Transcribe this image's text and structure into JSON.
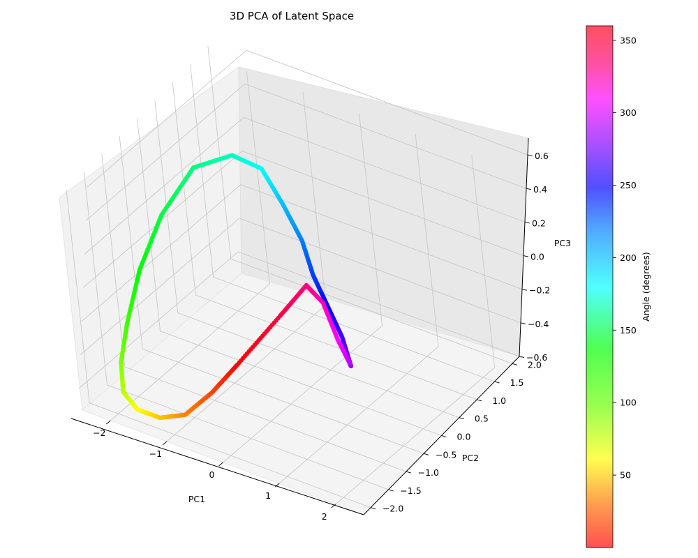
{
  "chart_data": {
    "type": "scatter",
    "projection": "3d",
    "title": "3D PCA of Latent Space",
    "xlabel": "PC1",
    "ylabel": "PC2",
    "zlabel": "PC3",
    "xlim": [
      -2.5,
      2.5
    ],
    "ylim": [
      -2.2,
      2.2
    ],
    "zlim": [
      -0.6,
      0.7
    ],
    "x_ticks": [
      "−2",
      "−1",
      "0",
      "1",
      "2"
    ],
    "y_ticks": [
      "−2.0",
      "−1.5",
      "−1.0",
      "−0.5",
      "0.0",
      "0.5",
      "1.0",
      "1.5",
      "2.0"
    ],
    "z_ticks": [
      "−0.6",
      "−0.4",
      "−0.2",
      "0.0",
      "0.2",
      "0.4",
      "0.6"
    ],
    "grid": true,
    "colormap": "hsv",
    "colorbar": {
      "label": "Angle (degrees)",
      "range": [
        0,
        360
      ],
      "ticks": [
        "50",
        "100",
        "150",
        "200",
        "250",
        "300",
        "350"
      ]
    },
    "series": [
      {
        "angle_deg": [
          0,
          15,
          30,
          45,
          60,
          75,
          90,
          105,
          120,
          135,
          150,
          165,
          180,
          195,
          210,
          225,
          240,
          255,
          270,
          285,
          300,
          315,
          330,
          345,
          360
        ],
        "x": [
          -0.2,
          -0.5,
          -0.9,
          -1.3,
          -1.7,
          -2.0,
          -2.2,
          -2.3,
          -2.4,
          -2.4,
          -2.3,
          -2.0,
          -1.7,
          -1.3,
          -0.8,
          -0.3,
          0.2,
          0.7,
          1.1,
          1.3,
          1.2,
          1.0,
          0.8,
          0.4,
          -0.2
        ],
        "y": [
          -1.3,
          -1.6,
          -1.8,
          -1.9,
          -1.9,
          -1.8,
          -1.5,
          -1.1,
          -0.5,
          0.2,
          1.0,
          1.6,
          1.9,
          1.8,
          1.5,
          1.0,
          0.6,
          0.2,
          -0.2,
          -0.5,
          -0.6,
          -0.6,
          -0.7,
          -0.9,
          -1.3
        ],
        "z": [
          -0.2,
          -0.35,
          -0.5,
          -0.55,
          -0.55,
          -0.5,
          -0.4,
          -0.25,
          -0.05,
          0.15,
          0.3,
          0.3,
          0.2,
          0.05,
          -0.05,
          -0.1,
          -0.15,
          -0.2,
          -0.25,
          -0.15,
          0.0,
          0.2,
          0.3,
          0.1,
          -0.2
        ]
      }
    ]
  }
}
